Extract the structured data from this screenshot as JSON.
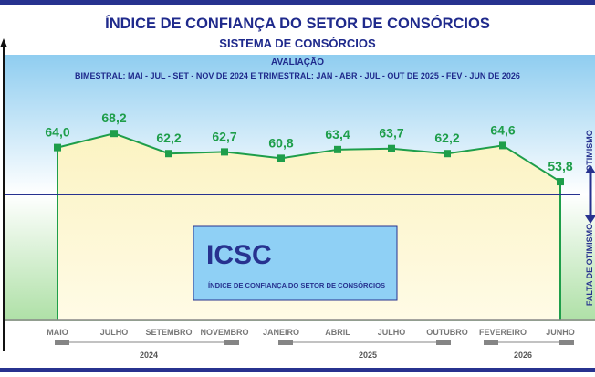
{
  "header": {
    "title": "ÍNDICE DE CONFIANÇA DO SETOR DE CONSÓRCIOS",
    "subtitle": "SISTEMA DE CONSÓRCIOS",
    "eval_label": "AVALIAÇÃO",
    "period_note": "BIMESTRAL: MAI - JUL - SET - NOV DE 2024 E TRIMESTRAL: JAN - ABR - JUL - OUT DE 2025 - FEV - JUN DE 2026"
  },
  "side_labels": {
    "top": "OTIMISMO",
    "bottom": "FALTA DE OTIMISMO"
  },
  "legend_box": {
    "abbr": "ICSC",
    "full": "ÍNDICE DE CONFIANÇA DO SETOR DE CONSÓRCIOS"
  },
  "colors": {
    "title": "#1f2a8c",
    "line": "#1e9e4a",
    "baseline": "#27328f",
    "legend_box": "#8fd0f5",
    "band": "#858585"
  },
  "chart_data": {
    "type": "line",
    "categories": [
      "MAIO",
      "JULHO",
      "SETEMBRO",
      "NOVEMBRO",
      "JANEIRO",
      "ABRIL",
      "JULHO",
      "OUTUBRO",
      "FEVEREIRO",
      "JUNHO"
    ],
    "values": [
      64.0,
      68.2,
      62.2,
      62.7,
      60.8,
      63.4,
      63.7,
      62.2,
      64.6,
      53.8
    ],
    "value_labels": [
      "64,0",
      "68,2",
      "62,2",
      "62,7",
      "60,8",
      "63,4",
      "63,7",
      "62,2",
      "64,6",
      "53,8"
    ],
    "baseline": 50,
    "years": [
      "2024",
      "2025",
      "2026"
    ]
  }
}
